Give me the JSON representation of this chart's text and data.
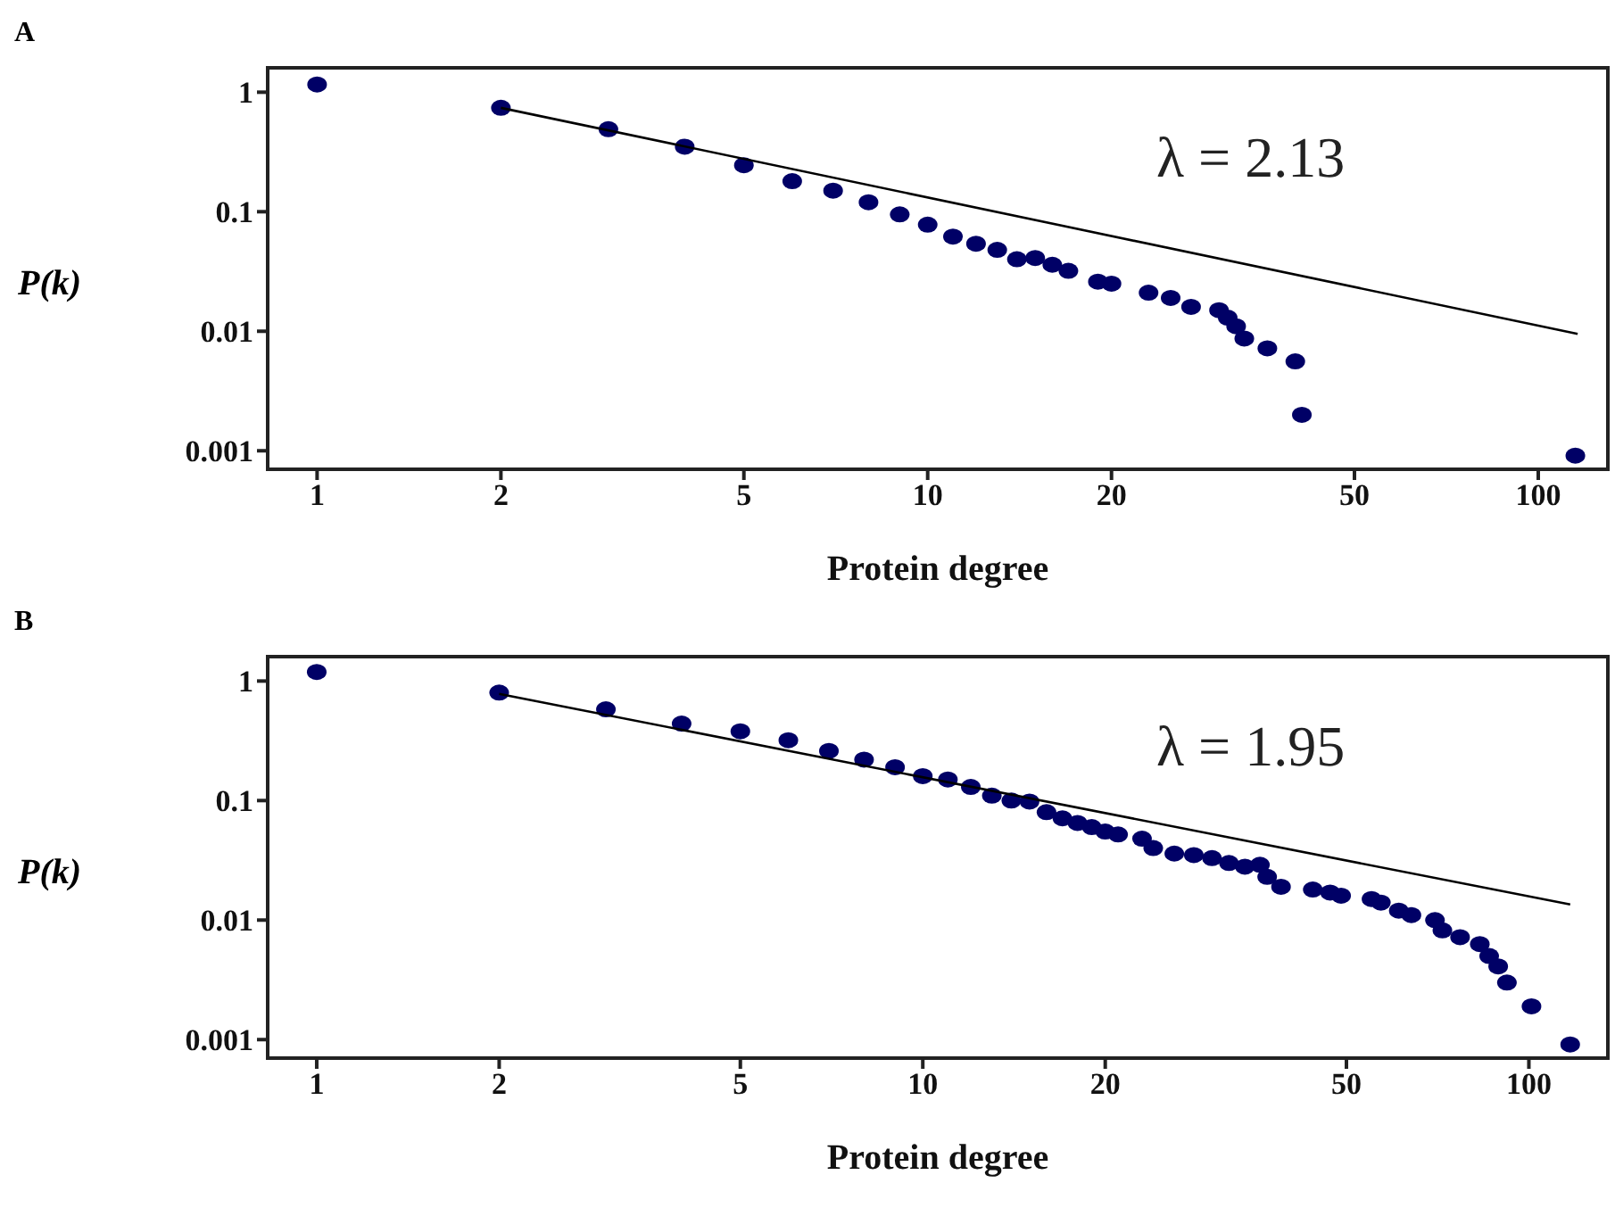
{
  "chart_data": [
    {
      "type": "scatter",
      "title": "A",
      "xlabel": "Protein degree",
      "ylabel": "P(k)",
      "log": "xy",
      "grid": false,
      "marker": "circle",
      "xlim": [
        0.83,
        130
      ],
      "xticks": [
        1,
        2,
        5,
        10,
        20,
        50,
        100
      ],
      "ylim": [
        0.0007,
        1.6
      ],
      "yticks": [
        0.001,
        0.01,
        0.1,
        1
      ],
      "annotations": [
        "λ = 2.13"
      ],
      "series": [
        {
          "type": "scatter",
          "color": "#000066",
          "x": [
            1,
            2,
            3,
            4,
            5,
            6,
            7,
            8,
            9,
            10,
            11,
            12,
            13,
            14,
            15,
            16,
            17,
            19,
            20,
            23,
            25,
            27,
            30,
            31,
            32,
            33,
            36,
            40,
            41,
            115
          ],
          "values": [
            1.16,
            0.74,
            0.49,
            0.35,
            0.245,
            0.18,
            0.15,
            0.12,
            0.095,
            0.078,
            0.062,
            0.054,
            0.048,
            0.04,
            0.041,
            0.036,
            0.032,
            0.026,
            0.025,
            0.021,
            0.019,
            0.016,
            0.015,
            0.013,
            0.011,
            0.0087,
            0.0072,
            0.0056,
            0.002,
            0.00091
          ]
        },
        {
          "type": "line",
          "color": "#000000",
          "marker": "none",
          "x": [
            2,
            116
          ],
          "values": [
            0.74,
            0.0095
          ]
        }
      ]
    },
    {
      "type": "scatter",
      "title": "B",
      "xlabel": "Protein degree",
      "ylabel": "P(k)",
      "log": "xy",
      "grid": false,
      "marker": "circle",
      "xlim": [
        0.83,
        135
      ],
      "xticks": [
        1,
        2,
        5,
        10,
        20,
        50,
        100
      ],
      "ylim": [
        0.0007,
        1.6
      ],
      "yticks": [
        0.001,
        0.01,
        0.1,
        1
      ],
      "annotations": [
        "λ = 1.95"
      ],
      "series": [
        {
          "type": "scatter",
          "color": "#000066",
          "x": [
            1,
            2,
            3,
            4,
            5,
            6,
            7,
            8,
            9,
            10,
            11,
            12,
            13,
            14,
            15,
            16,
            17,
            18,
            19,
            20,
            21,
            23,
            24,
            26,
            28,
            30,
            32,
            34,
            36,
            37,
            39,
            44,
            47,
            49,
            55,
            57,
            61,
            64,
            70,
            72,
            77,
            83,
            86,
            89,
            92,
            101,
            117
          ],
          "values": [
            1.19,
            0.8,
            0.58,
            0.44,
            0.38,
            0.32,
            0.26,
            0.22,
            0.19,
            0.16,
            0.15,
            0.13,
            0.11,
            0.1,
            0.098,
            0.08,
            0.071,
            0.065,
            0.06,
            0.055,
            0.052,
            0.048,
            0.04,
            0.036,
            0.035,
            0.033,
            0.03,
            0.028,
            0.029,
            0.023,
            0.019,
            0.018,
            0.017,
            0.016,
            0.015,
            0.014,
            0.012,
            0.011,
            0.01,
            0.0082,
            0.0072,
            0.0063,
            0.005,
            0.0041,
            0.003,
            0.0019,
            0.00091
          ]
        },
        {
          "type": "line",
          "color": "#000000",
          "marker": "none",
          "x": [
            2,
            117
          ],
          "values": [
            0.78,
            0.0135
          ]
        }
      ]
    }
  ]
}
